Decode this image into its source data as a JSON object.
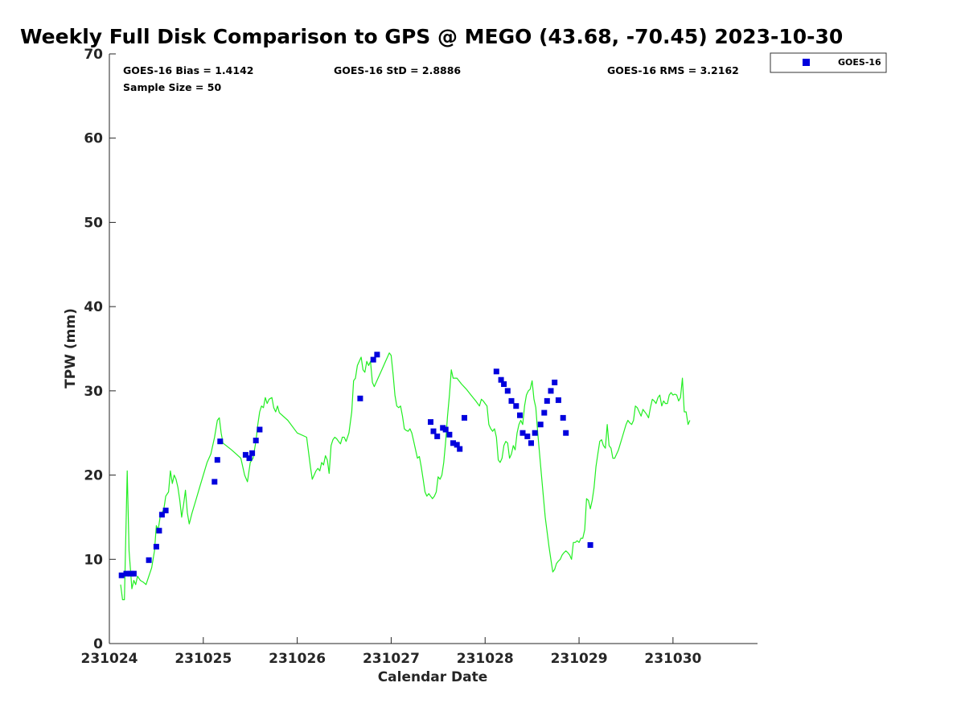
{
  "chart_data": {
    "type": "scatter",
    "title": "Weekly Full Disk Comparison to GPS @ MEGO (43.68, -70.45) 2023-10-30",
    "xlabel": "Calendar Date",
    "ylabel": "TPW (mm)",
    "xlim": [
      0,
      6.9
    ],
    "ylim": [
      0,
      70
    ],
    "yticks": [
      0,
      10,
      20,
      30,
      40,
      50,
      60,
      70
    ],
    "xticks": [
      {
        "value": 0,
        "label": "231024"
      },
      {
        "value": 1,
        "label": "231025"
      },
      {
        "value": 2,
        "label": "231026"
      },
      {
        "value": 3,
        "label": "231027"
      },
      {
        "value": 4,
        "label": "231028"
      },
      {
        "value": 5,
        "label": "231029"
      },
      {
        "value": 6,
        "label": "231030"
      }
    ],
    "stats": {
      "bias": "GOES-16 Bias = 1.4142",
      "std": "GOES-16 StD = 2.8886",
      "rms": "GOES-16 RMS = 3.2162",
      "sample_size": "Sample Size = 50"
    },
    "legend": {
      "label": "GOES-16",
      "color": "#0000dd",
      "position": "top-right, outside plot"
    },
    "gps_line": {
      "color": "#22ee22",
      "points": [
        [
          0.12,
          7.0
        ],
        [
          0.14,
          5.2
        ],
        [
          0.16,
          5.2
        ],
        [
          0.19,
          20.5
        ],
        [
          0.21,
          11.0
        ],
        [
          0.24,
          6.5
        ],
        [
          0.26,
          7.5
        ],
        [
          0.28,
          7.0
        ],
        [
          0.3,
          8.0
        ],
        [
          0.33,
          7.5
        ],
        [
          0.36,
          7.3
        ],
        [
          0.39,
          7.0
        ],
        [
          0.42,
          8.0
        ],
        [
          0.45,
          9.0
        ],
        [
          0.48,
          11.0
        ],
        [
          0.5,
          14.0
        ],
        [
          0.52,
          13.5
        ],
        [
          0.54,
          15.0
        ],
        [
          0.56,
          15.5
        ],
        [
          0.58,
          16.0
        ],
        [
          0.6,
          17.5
        ],
        [
          0.63,
          18.0
        ],
        [
          0.65,
          20.5
        ],
        [
          0.67,
          19.0
        ],
        [
          0.69,
          20.0
        ],
        [
          0.71,
          19.5
        ],
        [
          0.73,
          18.5
        ],
        [
          0.75,
          17.0
        ],
        [
          0.77,
          15.0
        ],
        [
          0.79,
          16.5
        ],
        [
          0.81,
          18.2
        ],
        [
          0.83,
          15.5
        ],
        [
          0.85,
          14.2
        ],
        [
          0.88,
          15.5
        ],
        [
          0.92,
          17.0
        ],
        [
          0.96,
          18.5
        ],
        [
          1.0,
          20.0
        ],
        [
          1.04,
          21.5
        ],
        [
          1.08,
          22.5
        ],
        [
          1.12,
          24.5
        ],
        [
          1.15,
          26.5
        ],
        [
          1.17,
          26.8
        ],
        [
          1.19,
          25.0
        ],
        [
          1.21,
          23.8
        ],
        [
          1.3,
          23.0
        ],
        [
          1.4,
          22.0
        ],
        [
          1.44,
          20.0
        ],
        [
          1.47,
          19.2
        ],
        [
          1.5,
          21.5
        ],
        [
          1.53,
          22.0
        ],
        [
          1.56,
          24.0
        ],
        [
          1.58,
          26.0
        ],
        [
          1.6,
          27.5
        ],
        [
          1.62,
          28.2
        ],
        [
          1.64,
          28.0
        ],
        [
          1.66,
          29.2
        ],
        [
          1.68,
          28.5
        ],
        [
          1.7,
          29.0
        ],
        [
          1.73,
          29.2
        ],
        [
          1.75,
          28.0
        ],
        [
          1.77,
          27.5
        ],
        [
          1.79,
          28.2
        ],
        [
          1.81,
          27.4
        ],
        [
          1.9,
          26.5
        ],
        [
          2.0,
          25.0
        ],
        [
          2.1,
          24.5
        ],
        [
          2.14,
          21.0
        ],
        [
          2.16,
          19.5
        ],
        [
          2.18,
          20.0
        ],
        [
          2.2,
          20.5
        ],
        [
          2.22,
          20.8
        ],
        [
          2.24,
          20.5
        ],
        [
          2.26,
          21.5
        ],
        [
          2.28,
          21.2
        ],
        [
          2.3,
          22.3
        ],
        [
          2.32,
          21.8
        ],
        [
          2.34,
          20.2
        ],
        [
          2.36,
          23.5
        ],
        [
          2.38,
          24.2
        ],
        [
          2.4,
          24.5
        ],
        [
          2.42,
          24.3
        ],
        [
          2.44,
          24.0
        ],
        [
          2.46,
          23.7
        ],
        [
          2.48,
          24.5
        ],
        [
          2.5,
          24.5
        ],
        [
          2.52,
          24.0
        ],
        [
          2.55,
          25.0
        ],
        [
          2.58,
          27.5
        ],
        [
          2.6,
          31.2
        ],
        [
          2.62,
          31.5
        ],
        [
          2.64,
          33.0
        ],
        [
          2.66,
          33.5
        ],
        [
          2.68,
          34.0
        ],
        [
          2.7,
          32.5
        ],
        [
          2.72,
          32.2
        ],
        [
          2.74,
          33.5
        ],
        [
          2.76,
          33.0
        ],
        [
          2.78,
          33.5
        ],
        [
          2.8,
          31.0
        ],
        [
          2.82,
          30.5
        ],
        [
          2.86,
          31.5
        ],
        [
          2.9,
          32.5
        ],
        [
          2.94,
          33.5
        ],
        [
          2.98,
          34.5
        ],
        [
          3.0,
          34.2
        ],
        [
          3.02,
          32.0
        ],
        [
          3.04,
          29.5
        ],
        [
          3.06,
          28.2
        ],
        [
          3.08,
          28.0
        ],
        [
          3.1,
          28.2
        ],
        [
          3.12,
          27.0
        ],
        [
          3.14,
          25.5
        ],
        [
          3.16,
          25.3
        ],
        [
          3.18,
          25.2
        ],
        [
          3.2,
          25.5
        ],
        [
          3.22,
          25.0
        ],
        [
          3.24,
          24.0
        ],
        [
          3.26,
          23.0
        ],
        [
          3.28,
          22.0
        ],
        [
          3.3,
          22.2
        ],
        [
          3.32,
          21.0
        ],
        [
          3.34,
          19.5
        ],
        [
          3.36,
          18.0
        ],
        [
          3.38,
          17.5
        ],
        [
          3.4,
          17.8
        ],
        [
          3.42,
          17.5
        ],
        [
          3.44,
          17.2
        ],
        [
          3.46,
          17.5
        ],
        [
          3.48,
          18.0
        ],
        [
          3.5,
          19.8
        ],
        [
          3.52,
          19.5
        ],
        [
          3.54,
          20.0
        ],
        [
          3.56,
          21.5
        ],
        [
          3.58,
          24.0
        ],
        [
          3.6,
          27.0
        ],
        [
          3.62,
          29.5
        ],
        [
          3.64,
          32.5
        ],
        [
          3.66,
          31.5
        ],
        [
          3.7,
          31.5
        ],
        [
          3.75,
          30.8
        ],
        [
          3.8,
          30.2
        ],
        [
          3.85,
          29.5
        ],
        [
          3.9,
          28.8
        ],
        [
          3.94,
          28.2
        ],
        [
          3.96,
          29.0
        ],
        [
          3.98,
          28.8
        ],
        [
          4.0,
          28.5
        ],
        [
          4.02,
          28.2
        ],
        [
          4.04,
          26.0
        ],
        [
          4.06,
          25.5
        ],
        [
          4.08,
          25.2
        ],
        [
          4.1,
          25.5
        ],
        [
          4.12,
          24.5
        ],
        [
          4.14,
          21.8
        ],
        [
          4.16,
          21.5
        ],
        [
          4.18,
          22.0
        ],
        [
          4.2,
          23.5
        ],
        [
          4.22,
          24.0
        ],
        [
          4.24,
          23.8
        ],
        [
          4.26,
          22.0
        ],
        [
          4.28,
          22.5
        ],
        [
          4.3,
          23.5
        ],
        [
          4.32,
          23.0
        ],
        [
          4.34,
          25.0
        ],
        [
          4.36,
          26.0
        ],
        [
          4.38,
          26.5
        ],
        [
          4.4,
          26.0
        ],
        [
          4.42,
          28.2
        ],
        [
          4.44,
          29.5
        ],
        [
          4.46,
          30.0
        ],
        [
          4.48,
          30.2
        ],
        [
          4.5,
          31.2
        ],
        [
          4.52,
          29.0
        ],
        [
          4.54,
          28.0
        ],
        [
          4.56,
          25.0
        ],
        [
          4.6,
          20.0
        ],
        [
          4.64,
          15.0
        ],
        [
          4.68,
          11.5
        ],
        [
          4.7,
          10.0
        ],
        [
          4.72,
          8.5
        ],
        [
          4.74,
          8.8
        ],
        [
          4.76,
          9.5
        ],
        [
          4.78,
          9.8
        ],
        [
          4.8,
          10.0
        ],
        [
          4.82,
          10.5
        ],
        [
          4.84,
          10.8
        ],
        [
          4.86,
          11.0
        ],
        [
          4.88,
          10.8
        ],
        [
          4.9,
          10.5
        ],
        [
          4.92,
          10.0
        ],
        [
          4.94,
          12.0
        ],
        [
          4.96,
          12.0
        ],
        [
          4.98,
          12.2
        ],
        [
          5.0,
          12.0
        ],
        [
          5.02,
          12.5
        ],
        [
          5.04,
          12.5
        ],
        [
          5.06,
          13.5
        ],
        [
          5.08,
          17.2
        ],
        [
          5.1,
          17.0
        ],
        [
          5.12,
          16.0
        ],
        [
          5.14,
          17.0
        ],
        [
          5.16,
          18.5
        ],
        [
          5.18,
          21.0
        ],
        [
          5.2,
          22.5
        ],
        [
          5.22,
          24.0
        ],
        [
          5.24,
          24.2
        ],
        [
          5.26,
          23.5
        ],
        [
          5.28,
          23.2
        ],
        [
          5.3,
          26.0
        ],
        [
          5.32,
          23.5
        ],
        [
          5.34,
          23.2
        ],
        [
          5.36,
          22.0
        ],
        [
          5.38,
          22.0
        ],
        [
          5.42,
          23.0
        ],
        [
          5.46,
          24.5
        ],
        [
          5.5,
          26.0
        ],
        [
          5.52,
          26.5
        ],
        [
          5.54,
          26.2
        ],
        [
          5.56,
          26.0
        ],
        [
          5.58,
          26.5
        ],
        [
          5.6,
          28.2
        ],
        [
          5.62,
          28.0
        ],
        [
          5.64,
          27.5
        ],
        [
          5.66,
          27.0
        ],
        [
          5.68,
          27.8
        ],
        [
          5.7,
          27.5
        ],
        [
          5.72,
          27.2
        ],
        [
          5.74,
          26.8
        ],
        [
          5.76,
          28.0
        ],
        [
          5.78,
          29.0
        ],
        [
          5.8,
          28.8
        ],
        [
          5.82,
          28.5
        ],
        [
          5.84,
          29.2
        ],
        [
          5.86,
          29.5
        ],
        [
          5.88,
          28.2
        ],
        [
          5.9,
          28.8
        ],
        [
          5.92,
          28.5
        ],
        [
          5.94,
          28.5
        ],
        [
          5.96,
          29.5
        ],
        [
          5.98,
          29.8
        ],
        [
          6.0,
          29.5
        ],
        [
          6.02,
          29.6
        ],
        [
          6.04,
          29.5
        ],
        [
          6.06,
          28.8
        ],
        [
          6.08,
          29.2
        ],
        [
          6.1,
          31.5
        ],
        [
          6.12,
          27.5
        ],
        [
          6.14,
          27.5
        ],
        [
          6.16,
          26.0
        ],
        [
          6.18,
          26.5
        ]
      ]
    },
    "series": [
      {
        "name": "GOES-16",
        "points": [
          [
            0.13,
            8.1
          ],
          [
            0.18,
            8.3
          ],
          [
            0.23,
            8.3
          ],
          [
            0.26,
            8.3
          ],
          [
            0.42,
            9.9
          ],
          [
            0.5,
            11.5
          ],
          [
            0.53,
            13.4
          ],
          [
            0.56,
            15.3
          ],
          [
            0.6,
            15.8
          ],
          [
            1.12,
            19.2
          ],
          [
            1.15,
            21.8
          ],
          [
            1.18,
            24.0
          ],
          [
            1.45,
            22.4
          ],
          [
            1.49,
            22.0
          ],
          [
            1.52,
            22.6
          ],
          [
            1.56,
            24.1
          ],
          [
            1.6,
            25.4
          ],
          [
            2.67,
            29.1
          ],
          [
            2.81,
            33.7
          ],
          [
            2.85,
            34.3
          ],
          [
            3.42,
            26.3
          ],
          [
            3.45,
            25.2
          ],
          [
            3.49,
            24.6
          ],
          [
            3.55,
            25.6
          ],
          [
            3.58,
            25.4
          ],
          [
            3.62,
            24.8
          ],
          [
            3.66,
            23.8
          ],
          [
            3.7,
            23.6
          ],
          [
            3.73,
            23.1
          ],
          [
            3.78,
            26.8
          ],
          [
            4.12,
            32.3
          ],
          [
            4.17,
            31.3
          ],
          [
            4.2,
            30.8
          ],
          [
            4.24,
            30.0
          ],
          [
            4.28,
            28.8
          ],
          [
            4.33,
            28.2
          ],
          [
            4.37,
            27.1
          ],
          [
            4.4,
            25.0
          ],
          [
            4.45,
            24.6
          ],
          [
            4.49,
            23.8
          ],
          [
            4.53,
            25.0
          ],
          [
            4.59,
            26.0
          ],
          [
            4.63,
            27.4
          ],
          [
            4.66,
            28.8
          ],
          [
            4.7,
            30.0
          ],
          [
            4.74,
            31.0
          ],
          [
            4.78,
            28.9
          ],
          [
            4.83,
            26.8
          ],
          [
            4.86,
            25.0
          ],
          [
            5.12,
            11.7
          ]
        ]
      }
    ]
  }
}
